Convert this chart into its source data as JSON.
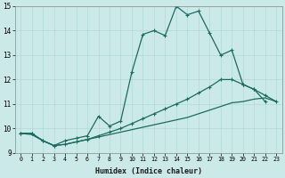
{
  "xlabel": "Humidex (Indice chaleur)",
  "xlim": [
    -0.5,
    23.5
  ],
  "ylim": [
    9,
    15
  ],
  "yticks": [
    9,
    10,
    11,
    12,
    13,
    14,
    15
  ],
  "xticks": [
    0,
    1,
    2,
    3,
    4,
    5,
    6,
    7,
    8,
    9,
    10,
    11,
    12,
    13,
    14,
    15,
    16,
    17,
    18,
    19,
    20,
    21,
    22,
    23
  ],
  "bg_color": "#cce9e9",
  "line_color": "#1a6b60",
  "grid_color": "#afd8d8",
  "series": [
    {
      "x": [
        0,
        1,
        2,
        3,
        4,
        5,
        6,
        7,
        8,
        9,
        10,
        11,
        12,
        13,
        14,
        15,
        16,
        17,
        18,
        19,
        20,
        21,
        22
      ],
      "y": [
        9.8,
        9.8,
        9.5,
        9.3,
        9.5,
        9.6,
        9.7,
        10.5,
        10.1,
        10.3,
        12.3,
        13.85,
        14.0,
        13.8,
        15.0,
        14.65,
        14.8,
        13.9,
        13.0,
        13.2,
        11.8,
        11.6,
        11.1
      ],
      "marker": true
    },
    {
      "x": [
        0,
        1,
        2,
        3,
        4,
        5,
        6,
        7,
        8,
        9,
        10,
        11,
        12,
        13,
        14,
        15,
        16,
        17,
        18,
        19,
        20,
        21,
        22,
        23
      ],
      "y": [
        9.8,
        9.8,
        9.5,
        9.3,
        9.35,
        9.45,
        9.55,
        9.7,
        9.85,
        10.0,
        10.2,
        10.4,
        10.6,
        10.8,
        11.0,
        11.2,
        11.45,
        11.7,
        12.0,
        12.0,
        11.8,
        11.6,
        11.35,
        11.1
      ],
      "marker": true
    },
    {
      "x": [
        0,
        1,
        2,
        3,
        4,
        5,
        6,
        7,
        8,
        9,
        10,
        11,
        12,
        13,
        14,
        15,
        16,
        17,
        18,
        19,
        20,
        21,
        22,
        23
      ],
      "y": [
        9.8,
        9.75,
        9.5,
        9.3,
        9.35,
        9.45,
        9.55,
        9.65,
        9.75,
        9.85,
        9.95,
        10.05,
        10.15,
        10.25,
        10.35,
        10.45,
        10.6,
        10.75,
        10.9,
        11.05,
        11.1,
        11.2,
        11.25,
        11.1
      ],
      "marker": false
    }
  ]
}
